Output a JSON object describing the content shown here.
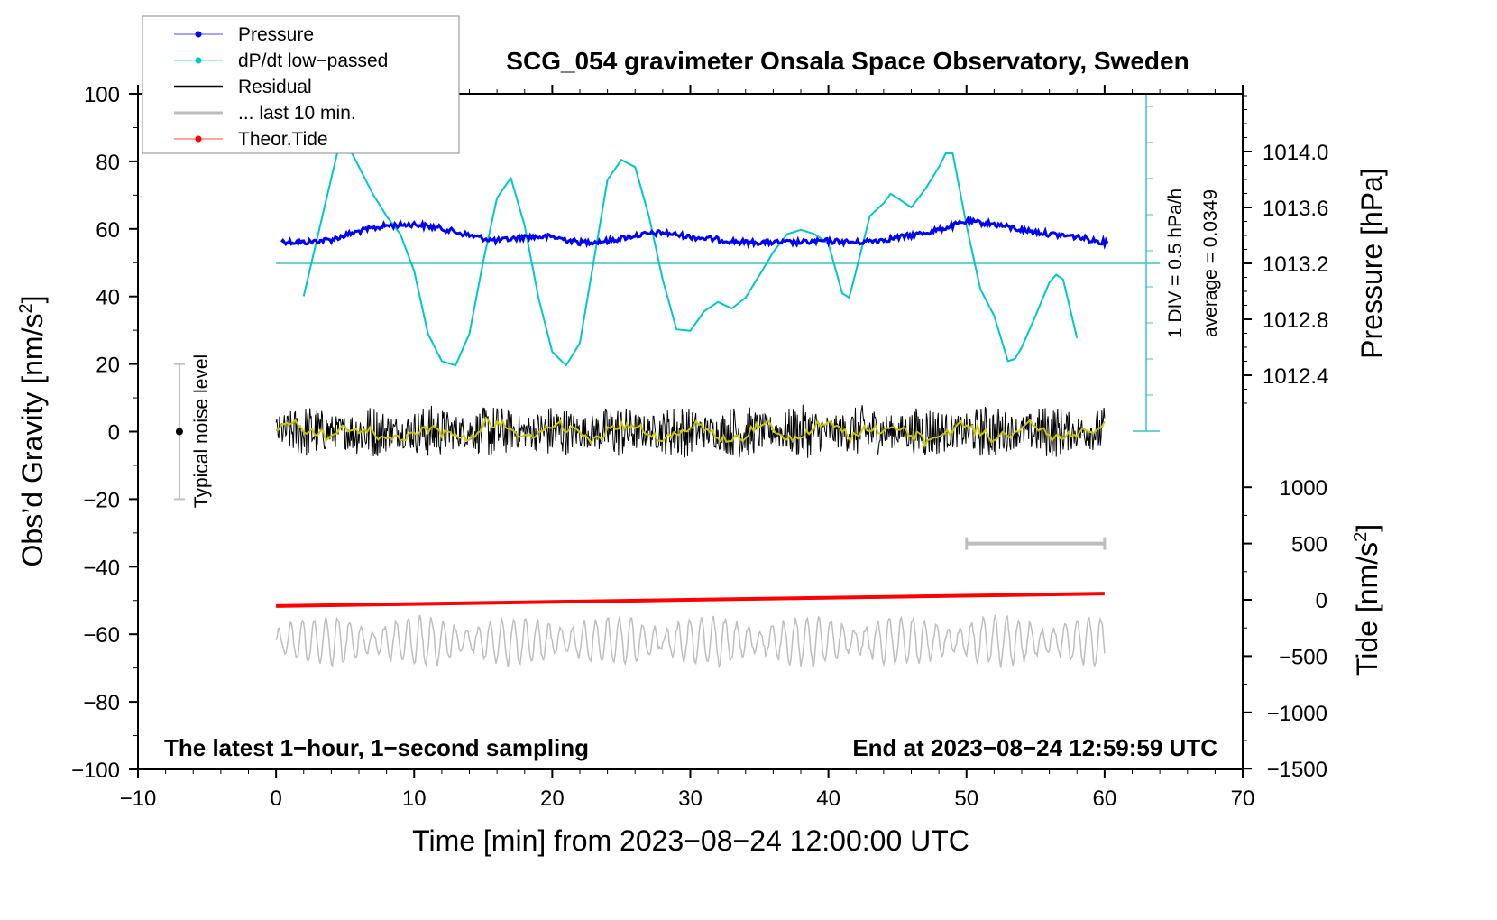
{
  "chart_data": {
    "type": "line",
    "title": "SCG_054 gravimeter Onsala Space Observatory, Sweden",
    "xlabel": "Time [min] from 2023−08−24 12:00:00 UTC",
    "ylabel": "Obs’d Gravity [nm/s",
    "ylabel_sup": "2",
    "ylabel_end": "]",
    "y2label": "Pressure [hPa]",
    "y3label": "Tide [nm/s",
    "y3label_sup": "2",
    "y3label_end": "]",
    "xlim": [
      -10,
      70
    ],
    "ylim": [
      -100,
      100
    ],
    "x_ticks": [
      -10,
      0,
      10,
      20,
      30,
      40,
      50,
      60,
      70
    ],
    "x_tick_labels": [
      "−10",
      "0",
      "10",
      "20",
      "30",
      "40",
      "50",
      "60",
      "70"
    ],
    "y_ticks": [
      100,
      80,
      60,
      40,
      20,
      0,
      -20,
      -40,
      -60,
      -80,
      -100
    ],
    "y_tick_labels": [
      "100",
      "80",
      "60",
      "40",
      "20",
      "0",
      "−20",
      "−40",
      "−60",
      "−80",
      "−100"
    ],
    "pressure_ticks": [
      1014.0,
      1013.6,
      1013.2,
      1012.8,
      1012.4
    ],
    "pressure_tick_labels": [
      "1014.0",
      "1013.6",
      "1013.2",
      "1012.8",
      "1012.4"
    ],
    "tide_ticks": [
      1000,
      500,
      0,
      -500,
      -1000,
      -1500
    ],
    "tide_tick_labels": [
      "1000",
      "500",
      "0",
      "−500",
      "−1000",
      "−1500"
    ],
    "legend": {
      "placement": "top-left",
      "entries": [
        {
          "label": "Pressure",
          "color": "#0000ff"
        },
        {
          "label": "dP/dt low−passed",
          "color": "#00c8c8"
        },
        {
          "label": "Residual",
          "color": "#000000"
        },
        {
          "label": "... last 10 min.",
          "color": "#bebebe"
        },
        {
          "label": "Theor.Tide",
          "color": "#ff0000"
        }
      ]
    },
    "annotations": {
      "bottom_left": "The latest 1−hour, 1−second sampling",
      "bottom_right": "End at 2023−08−24 12:59:59 UTC",
      "noise_label": "Typical noise level",
      "div_label": "1 DIV = 0.5 hPa/h",
      "average_label": "average = 0.0349"
    },
    "pressure_series": {
      "name": "Pressure",
      "unit": "hPa",
      "x": [
        0,
        2,
        4,
        6,
        8,
        10,
        12,
        14,
        16,
        18,
        20,
        22,
        24,
        26,
        28,
        30,
        32,
        34,
        36,
        38,
        40,
        42,
        44,
        46,
        48,
        50,
        52,
        54,
        56,
        58,
        60
      ],
      "values": [
        1013.36,
        1013.35,
        1013.37,
        1013.43,
        1013.47,
        1013.48,
        1013.45,
        1013.4,
        1013.36,
        1013.39,
        1013.39,
        1013.35,
        1013.36,
        1013.4,
        1013.42,
        1013.39,
        1013.37,
        1013.35,
        1013.35,
        1013.35,
        1013.36,
        1013.35,
        1013.37,
        1013.4,
        1013.44,
        1013.5,
        1013.48,
        1013.44,
        1013.41,
        1013.39,
        1013.35
      ]
    },
    "dpdt_series": {
      "name": "dP/dt low-passed",
      "unit": "hPa/h",
      "average": 0.0349,
      "div": 0.5,
      "x": [
        2,
        3.5,
        4.5,
        5.5,
        7,
        8,
        9,
        10,
        11,
        12,
        13,
        14,
        15,
        16,
        17,
        18,
        19,
        20,
        21,
        22,
        23,
        24,
        25,
        26,
        27,
        28,
        29,
        30,
        31,
        32,
        33,
        34,
        35,
        36,
        37,
        38,
        39,
        40,
        41,
        41.5,
        42,
        43,
        44,
        44.5,
        45,
        46,
        47,
        48,
        48.5,
        49,
        50,
        51,
        52,
        53,
        53.5,
        54,
        55,
        56,
        56.5,
        57,
        58
      ],
      "values": [
        -0.42,
        0.81,
        1.62,
        1.56,
        1.0,
        0.69,
        0.44,
        -0.07,
        -0.94,
        -1.32,
        -1.38,
        -0.94,
        0.06,
        0.94,
        1.22,
        0.56,
        -0.44,
        -1.19,
        -1.38,
        -1.07,
        0.06,
        1.19,
        1.47,
        1.37,
        0.69,
        -0.19,
        -0.88,
        -0.9,
        -0.63,
        -0.5,
        -0.59,
        -0.44,
        -0.13,
        0.19,
        0.44,
        0.5,
        0.44,
        0.31,
        -0.38,
        -0.44,
        -0.07,
        0.69,
        0.87,
        1.0,
        0.94,
        0.81,
        1.06,
        1.37,
        1.56,
        1.56,
        0.56,
        -0.32,
        -0.69,
        -1.32,
        -1.29,
        -1.13,
        -0.69,
        -0.23,
        -0.12,
        -0.19,
        -1.0
      ]
    },
    "residual_series": {
      "name": "Residual",
      "x_range": [
        0,
        60
      ],
      "mean": 0,
      "approx_amplitude": 8,
      "smoothed_color": "#c8c800"
    },
    "last10_series": {
      "name": "... last 10 min.",
      "offset": -62,
      "approx_amplitude": 7,
      "bar_range_min": [
        50,
        60
      ],
      "bar_level_tide": 500
    },
    "tide_series": {
      "name": "Theor.Tide",
      "unit": "nm/s2",
      "x": [
        0,
        60
      ],
      "values": [
        -55,
        55
      ]
    },
    "noise_level": {
      "x": -7,
      "range": [
        -20,
        20
      ],
      "center": 0
    }
  }
}
